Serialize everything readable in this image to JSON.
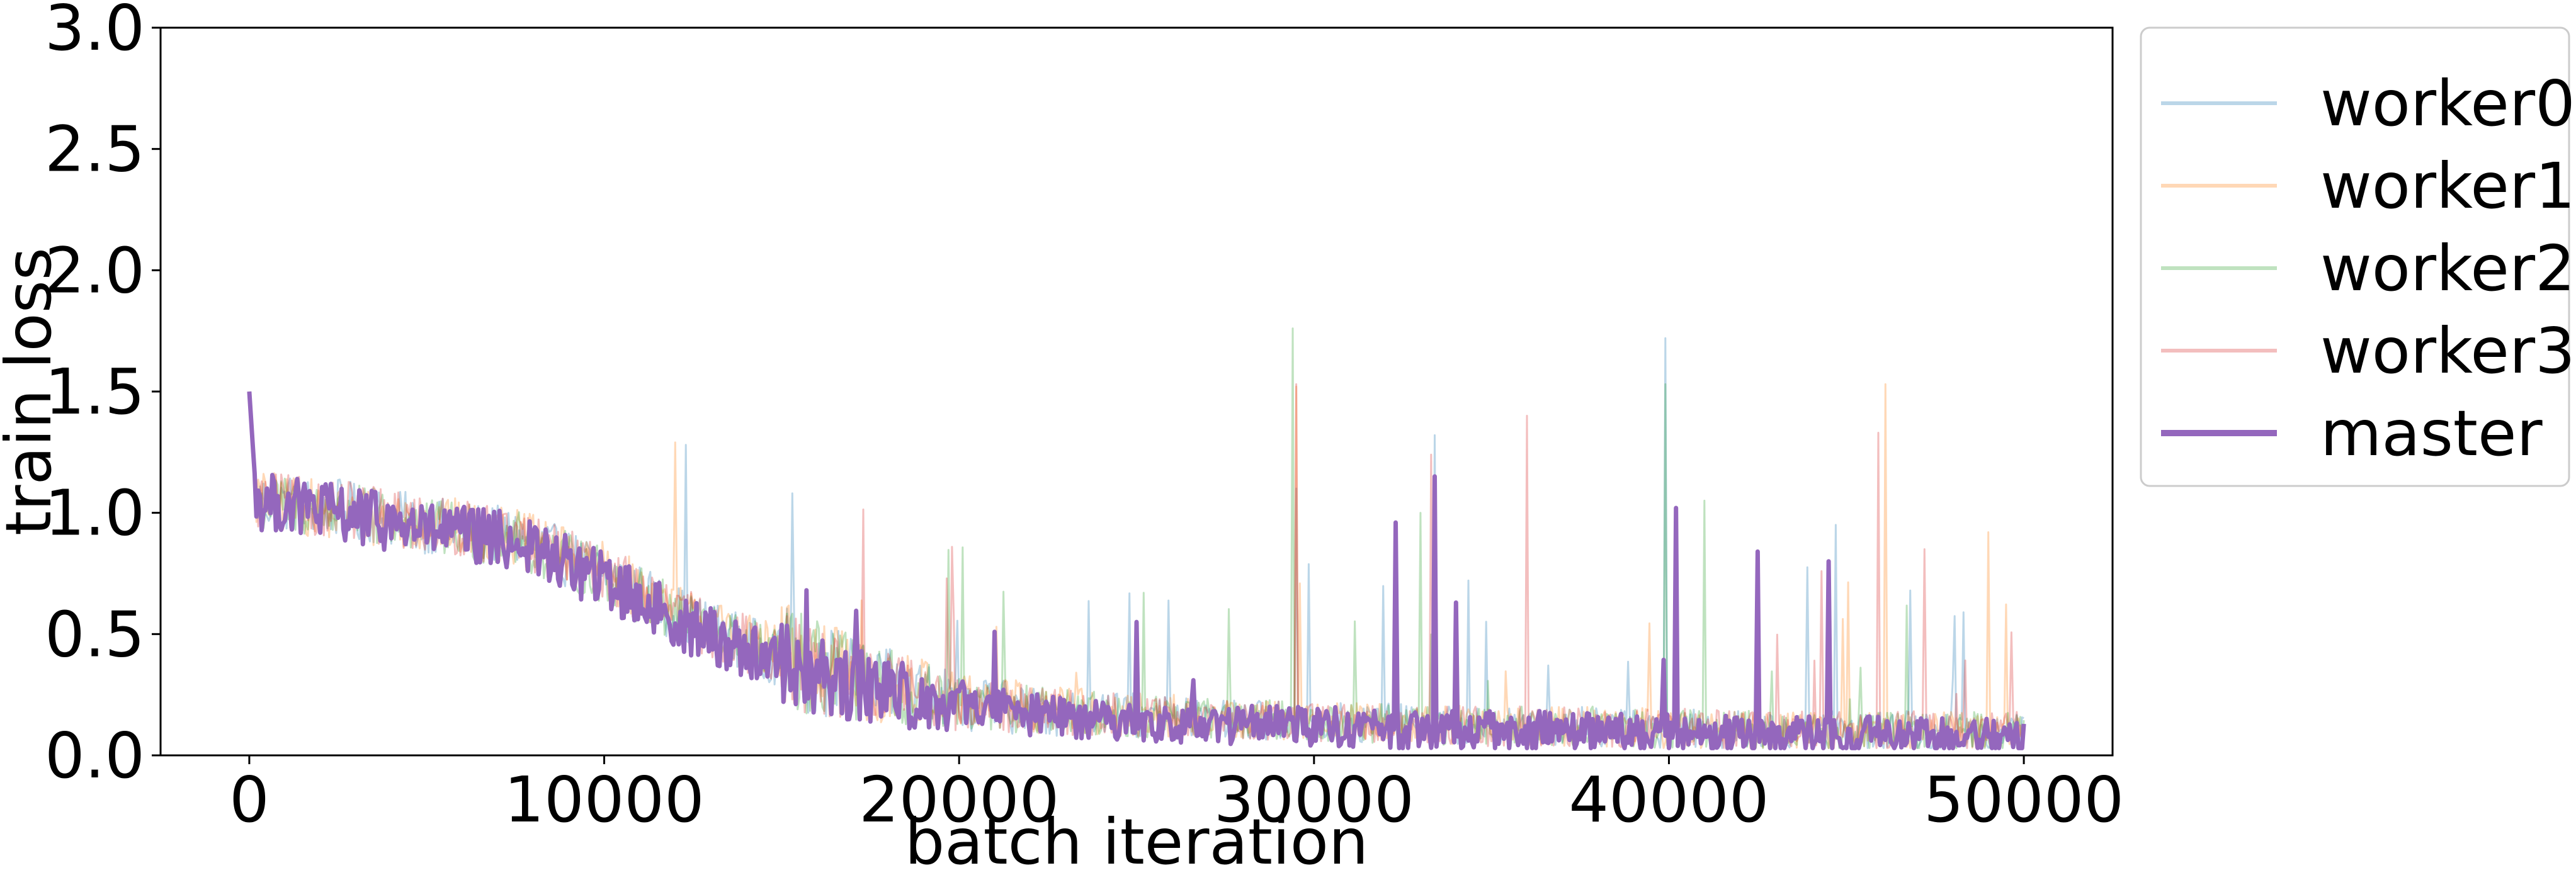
{
  "chart_data": {
    "type": "line",
    "xlabel": "batch iteration",
    "ylabel": "train loss",
    "xlim": [
      -2500,
      52500
    ],
    "ylim": [
      0.0,
      3.0
    ],
    "xticks": [
      0,
      10000,
      20000,
      30000,
      40000,
      50000
    ],
    "xtick_labels": [
      "0",
      "10000",
      "20000",
      "30000",
      "40000",
      "50000"
    ],
    "yticks": [
      0.0,
      0.5,
      1.0,
      1.5,
      2.0,
      2.5,
      3.0
    ],
    "ytick_labels": [
      "0.0",
      "0.5",
      "1.0",
      "1.5",
      "2.0",
      "2.5",
      "3.0"
    ],
    "grid": false,
    "legend_position": "outside-right-top",
    "series": [
      {
        "name": "worker0",
        "color": "#1f77b4",
        "opacity": 0.3,
        "linewidth": 3,
        "x": [
          0,
          200,
          2500,
          5000,
          7500,
          10000,
          12500,
          15000,
          17500,
          20000,
          22500,
          25000,
          27500,
          30000,
          32500,
          35000,
          37500,
          40000,
          42500,
          45000,
          47500,
          50000
        ],
        "y": [
          1.5,
          1.05,
          1.02,
          0.95,
          0.9,
          0.75,
          0.55,
          0.4,
          0.3,
          0.22,
          0.18,
          0.16,
          0.15,
          0.14,
          0.13,
          0.12,
          0.12,
          0.11,
          0.1,
          0.1,
          0.1,
          0.1
        ],
        "spikes": [
          [
            12300,
            1.28
          ],
          [
            15300,
            1.08
          ],
          [
            29500,
            1.1
          ],
          [
            33400,
            1.32
          ],
          [
            39900,
            1.72
          ],
          [
            44700,
            0.95
          ]
        ]
      },
      {
        "name": "worker1",
        "color": "#ff7f0e",
        "opacity": 0.3,
        "linewidth": 3,
        "x": [
          0,
          200,
          2500,
          5000,
          7500,
          10000,
          12500,
          15000,
          17500,
          20000,
          22500,
          25000,
          27500,
          30000,
          32500,
          35000,
          37500,
          40000,
          42500,
          45000,
          47500,
          50000
        ],
        "y": [
          1.5,
          1.06,
          1.0,
          0.96,
          0.9,
          0.76,
          0.56,
          0.41,
          0.31,
          0.23,
          0.19,
          0.17,
          0.15,
          0.14,
          0.13,
          0.12,
          0.12,
          0.11,
          0.1,
          0.1,
          0.1,
          0.1
        ],
        "spikes": [
          [
            12000,
            1.29
          ],
          [
            29500,
            1.52
          ],
          [
            46100,
            1.53
          ],
          [
            49000,
            0.92
          ]
        ]
      },
      {
        "name": "worker2",
        "color": "#2ca02c",
        "opacity": 0.3,
        "linewidth": 3,
        "x": [
          0,
          200,
          2500,
          5000,
          7500,
          10000,
          12500,
          15000,
          17500,
          20000,
          22500,
          25000,
          27500,
          30000,
          32500,
          35000,
          37500,
          40000,
          42500,
          45000,
          47500,
          50000
        ],
        "y": [
          1.5,
          1.04,
          1.01,
          0.94,
          0.89,
          0.74,
          0.54,
          0.4,
          0.3,
          0.22,
          0.18,
          0.16,
          0.15,
          0.14,
          0.13,
          0.12,
          0.12,
          0.11,
          0.1,
          0.1,
          0.1,
          0.1
        ],
        "spikes": [
          [
            29400,
            1.76
          ],
          [
            39900,
            1.53
          ],
          [
            41000,
            1.05
          ],
          [
            33000,
            1.0
          ]
        ]
      },
      {
        "name": "worker3",
        "color": "#d62728",
        "opacity": 0.3,
        "linewidth": 3,
        "x": [
          0,
          200,
          2500,
          5000,
          7500,
          10000,
          12500,
          15000,
          17500,
          20000,
          22500,
          25000,
          27500,
          30000,
          32500,
          35000,
          37500,
          40000,
          42500,
          45000,
          47500,
          50000
        ],
        "y": [
          1.5,
          1.05,
          1.02,
          0.95,
          0.9,
          0.75,
          0.55,
          0.4,
          0.3,
          0.22,
          0.18,
          0.16,
          0.15,
          0.14,
          0.13,
          0.12,
          0.12,
          0.11,
          0.1,
          0.1,
          0.1,
          0.1
        ],
        "spikes": [
          [
            29500,
            1.53
          ],
          [
            33300,
            1.24
          ],
          [
            36000,
            1.4
          ],
          [
            45900,
            1.33
          ],
          [
            47200,
            0.85
          ]
        ]
      },
      {
        "name": "master",
        "color": "#9467bd",
        "opacity": 1.0,
        "linewidth": 7,
        "x": [
          0,
          200,
          2500,
          5000,
          7500,
          10000,
          12500,
          15000,
          17500,
          20000,
          22500,
          25000,
          27500,
          30000,
          32500,
          35000,
          37500,
          40000,
          42500,
          45000,
          47500,
          50000
        ],
        "y": [
          1.5,
          1.05,
          1.0,
          0.93,
          0.88,
          0.72,
          0.52,
          0.38,
          0.28,
          0.2,
          0.16,
          0.14,
          0.13,
          0.12,
          0.11,
          0.1,
          0.1,
          0.09,
          0.08,
          0.08,
          0.08,
          0.08
        ],
        "spikes": [
          [
            32300,
            0.96
          ],
          [
            33400,
            1.15
          ],
          [
            40200,
            1.02
          ],
          [
            44500,
            0.8
          ],
          [
            42500,
            0.84
          ],
          [
            25000,
            0.55
          ],
          [
            34000,
            0.63
          ]
        ]
      }
    ]
  }
}
